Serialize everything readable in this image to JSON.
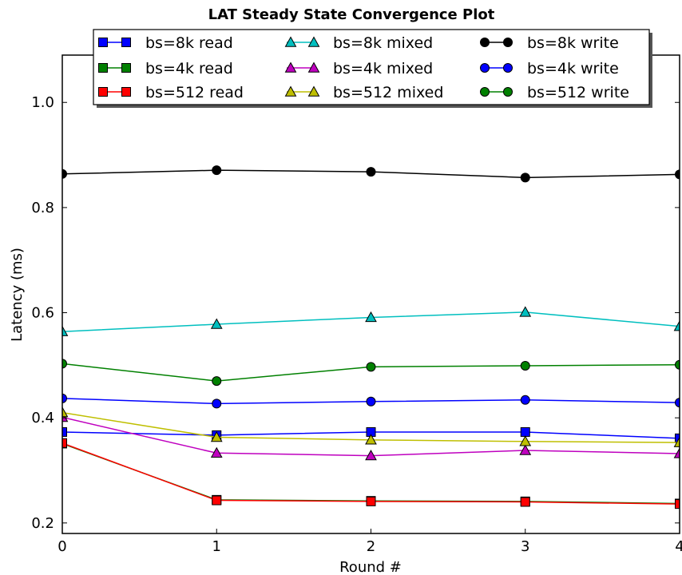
{
  "chart_data": {
    "type": "line",
    "title": "LAT Steady State Convergence Plot",
    "xlabel": "Round #",
    "ylabel": "Latency (ms)",
    "x": [
      0,
      1,
      2,
      3,
      4
    ],
    "xticks": [
      "0",
      "1",
      "2",
      "3",
      "4"
    ],
    "yticks": [
      "0.2",
      "0.4",
      "0.6",
      "0.8",
      "1.0"
    ],
    "xlim": [
      0,
      4
    ],
    "ylim": [
      0.18,
      1.09
    ],
    "grid": false,
    "legend_position": "top",
    "series": [
      {
        "name": "bs=8k read",
        "marker": "square",
        "color": "#0000ff",
        "values": [
          0.373,
          0.367,
          0.373,
          0.373,
          0.361
        ]
      },
      {
        "name": "bs=4k read",
        "marker": "square",
        "color": "#008000",
        "values": [
          0.351,
          0.244,
          0.242,
          0.241,
          0.237
        ]
      },
      {
        "name": "bs=512 read",
        "marker": "square",
        "color": "#ff0000",
        "values": [
          0.352,
          0.243,
          0.241,
          0.24,
          0.236
        ]
      },
      {
        "name": "bs=8k mixed",
        "marker": "triangle",
        "color": "#00bfbf",
        "values": [
          0.564,
          0.578,
          0.591,
          0.601,
          0.574
        ]
      },
      {
        "name": "bs=4k mixed",
        "marker": "triangle",
        "color": "#bf00bf",
        "values": [
          0.401,
          0.333,
          0.328,
          0.338,
          0.332
        ]
      },
      {
        "name": "bs=512 mixed",
        "marker": "triangle",
        "color": "#bfbf00",
        "values": [
          0.41,
          0.363,
          0.358,
          0.355,
          0.353
        ]
      },
      {
        "name": "bs=8k write",
        "marker": "circle",
        "color": "#000000",
        "values": [
          0.864,
          0.871,
          0.868,
          0.857,
          0.863
        ]
      },
      {
        "name": "bs=4k write",
        "marker": "circle",
        "color": "#0000ff",
        "values": [
          0.437,
          0.427,
          0.431,
          0.434,
          0.429
        ]
      },
      {
        "name": "bs=512 write",
        "marker": "circle",
        "color": "#008000",
        "values": [
          0.503,
          0.47,
          0.497,
          0.499,
          0.501
        ]
      }
    ]
  }
}
